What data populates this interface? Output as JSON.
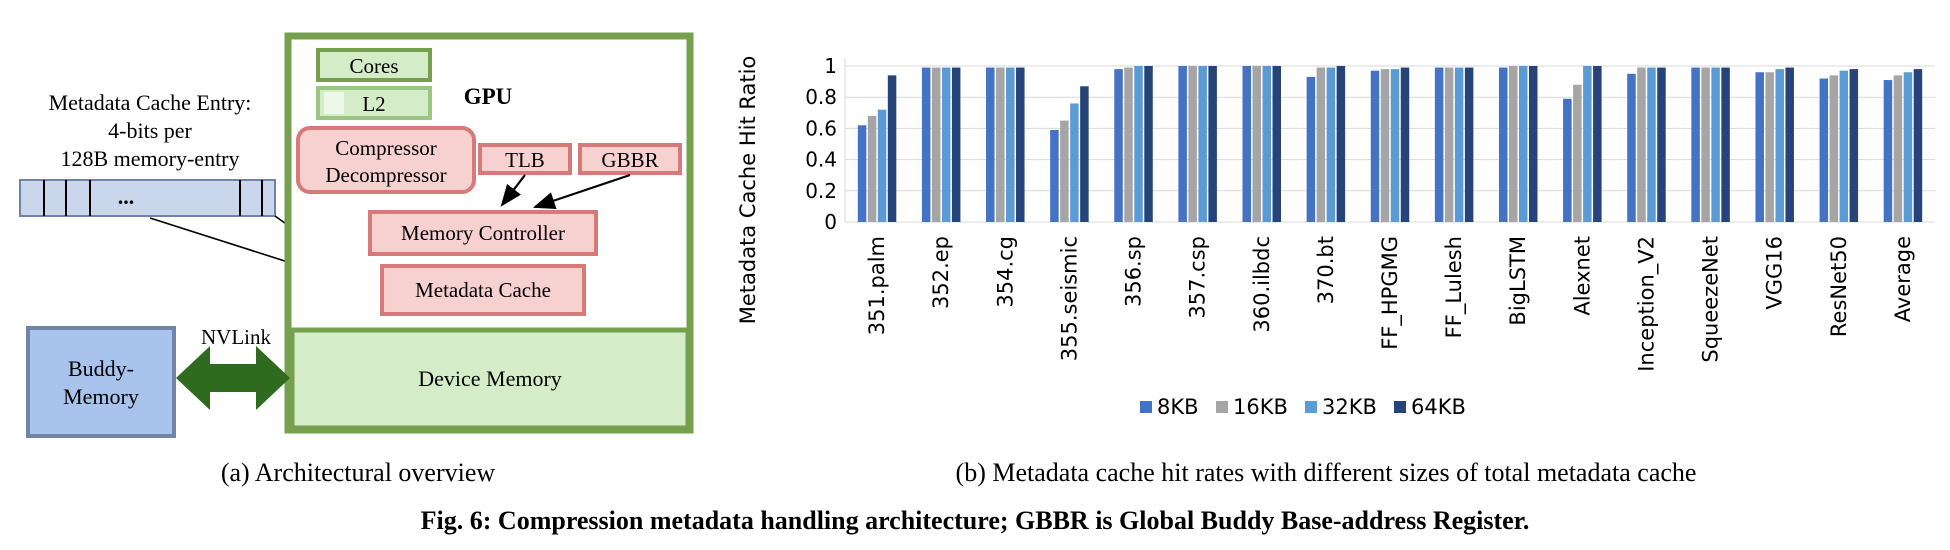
{
  "arch": {
    "entry_label_1": "Metadata Cache Entry:",
    "entry_label_2": "4-bits per",
    "entry_label_3": "128B memory-entry",
    "entry_dots": "...",
    "cores": "Cores",
    "l2": "L2",
    "gpu": "GPU",
    "compressor": "Compressor",
    "decompressor": "Decompressor",
    "tlb": "TLB",
    "gbbr": "GBBR",
    "memory_controller": "Memory Controller",
    "metadata_cache": "Metadata Cache",
    "device_memory": "Device Memory",
    "buddy_1": "Buddy-",
    "buddy_2": "Memory",
    "nvlink": "NVLink"
  },
  "captions": {
    "a": "(a) Architectural overview",
    "b": "(b) Metadata cache hit rates with different sizes of total metadata cache",
    "main": "Fig. 6: Compression metadata handling architecture; GBBR is Global Buddy Base-address Register."
  },
  "colors": {
    "gpu_border": "#76a04e",
    "pink_fill": "#f7d0d0",
    "pink_border": "#d87878",
    "green_fill": "#d4edc8",
    "blue_fill": "#a8c4ec",
    "arrow_green": "#2e6b1e"
  },
  "chart_data": {
    "type": "bar",
    "ylabel": "Metadata Cache Hit Ratio",
    "ylim": [
      0,
      1
    ],
    "yticks": [
      "0",
      "0.2",
      "0.4",
      "0.6",
      "0.8",
      "1"
    ],
    "grid": true,
    "legend_position": "bottom",
    "categories": [
      "351.palm",
      "352.ep",
      "354.cg",
      "355.seismic",
      "356.sp",
      "357.csp",
      "360.ilbdc",
      "370.bt",
      "FF_HPGMG",
      "FF_Lulesh",
      "BigLSTM",
      "Alexnet",
      "Inception_V2",
      "SqueezeNet",
      "VGG16",
      "ResNet50",
      "Average"
    ],
    "series": [
      {
        "name": "8KB",
        "color": "#4472c4",
        "values": [
          0.62,
          0.99,
          0.99,
          0.59,
          0.98,
          1.0,
          1.0,
          0.93,
          0.97,
          0.99,
          0.99,
          0.79,
          0.95,
          0.99,
          0.96,
          0.92,
          0.91
        ]
      },
      {
        "name": "16KB",
        "color": "#a5a5a5",
        "values": [
          0.68,
          0.99,
          0.99,
          0.65,
          0.99,
          1.0,
          1.0,
          0.99,
          0.98,
          0.99,
          1.0,
          0.88,
          0.99,
          0.99,
          0.96,
          0.94,
          0.94
        ]
      },
      {
        "name": "32KB",
        "color": "#5b9bd5",
        "values": [
          0.72,
          0.99,
          0.99,
          0.76,
          1.0,
          1.0,
          1.0,
          0.99,
          0.98,
          0.99,
          1.0,
          1.0,
          0.99,
          0.99,
          0.98,
          0.97,
          0.96
        ]
      },
      {
        "name": "64KB",
        "color": "#264478",
        "values": [
          0.94,
          0.99,
          0.99,
          0.87,
          1.0,
          1.0,
          1.0,
          1.0,
          0.99,
          0.99,
          1.0,
          1.0,
          0.99,
          0.99,
          0.99,
          0.98,
          0.98
        ]
      }
    ]
  }
}
